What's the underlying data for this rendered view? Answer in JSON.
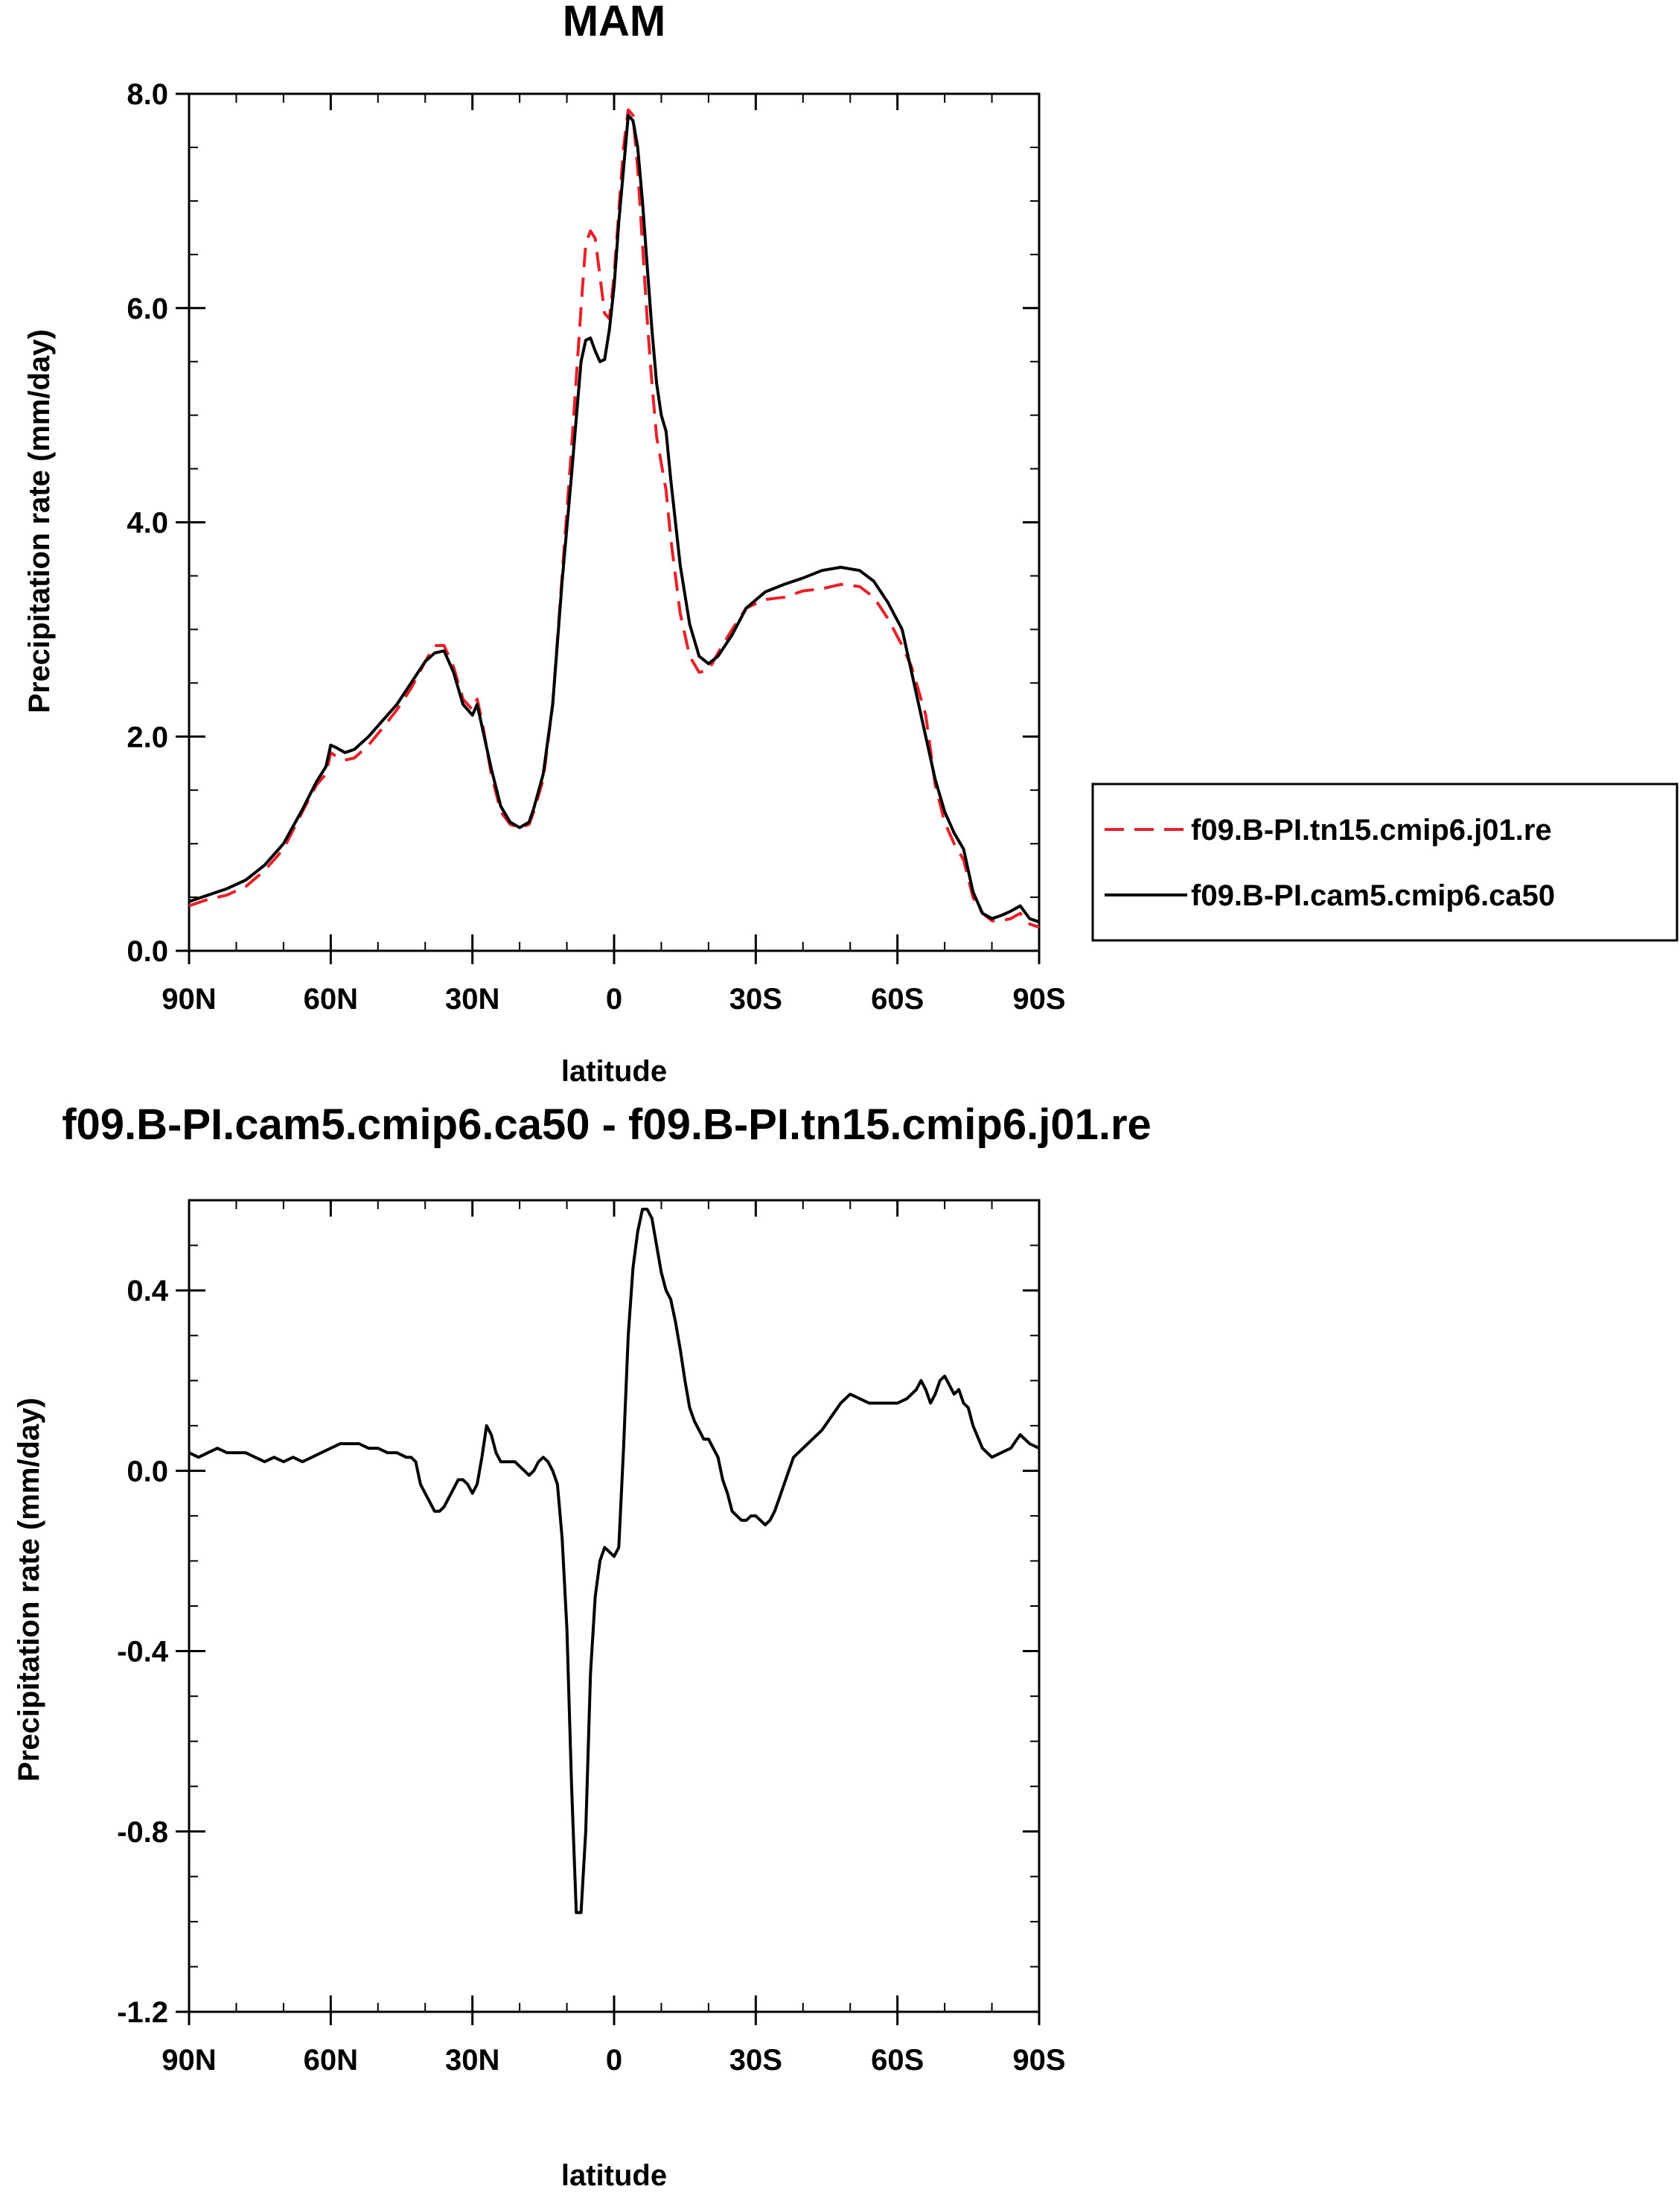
{
  "chart_data": [
    {
      "type": "line",
      "title": "MAM",
      "xlabel": "latitude",
      "ylabel": "Precipitation rate (mm/day)",
      "x_reversed": true,
      "xlim": [
        90,
        -90
      ],
      "ylim": [
        0,
        8
      ],
      "xticks": [
        90,
        60,
        30,
        0,
        -30,
        -60,
        -90
      ],
      "xtick_labels": [
        "90N",
        "60N",
        "30N",
        "0",
        "30S",
        "60S",
        "90S"
      ],
      "yticks": [
        0,
        2,
        4,
        6,
        8
      ],
      "ytick_labels": [
        "0.0",
        "2.0",
        "4.0",
        "6.0",
        "8.0"
      ],
      "grid": false,
      "legend_position": "right",
      "series": [
        {
          "name": "f09.B-PI.tn15.cmip6.j01.re",
          "color": "#e8202a",
          "dash": "dashed",
          "x": [
            90,
            86,
            82,
            78,
            74,
            70,
            66,
            63,
            61,
            60,
            59,
            57,
            55,
            52,
            49,
            46,
            43,
            40,
            38,
            36,
            34,
            32,
            30,
            29,
            28,
            26,
            24,
            22,
            20,
            18,
            17,
            15,
            13,
            11,
            9,
            7,
            6,
            5,
            4,
            3,
            2,
            1,
            0,
            -1,
            -2,
            -3,
            -4,
            -5,
            -6,
            -7,
            -8,
            -9,
            -10,
            -11,
            -12,
            -14,
            -16,
            -18,
            -20,
            -22,
            -25,
            -28,
            -32,
            -36,
            -40,
            -44,
            -48,
            -52,
            -55,
            -58,
            -61,
            -63,
            -66,
            -68,
            -70,
            -72,
            -74,
            -76,
            -78,
            -80,
            -82,
            -84,
            -86,
            -88,
            -90
          ],
          "y": [
            0.42,
            0.48,
            0.52,
            0.6,
            0.75,
            0.95,
            1.3,
            1.55,
            1.65,
            1.85,
            1.82,
            1.78,
            1.8,
            1.92,
            2.08,
            2.25,
            2.45,
            2.7,
            2.85,
            2.85,
            2.65,
            2.35,
            2.25,
            2.35,
            2.15,
            1.65,
            1.3,
            1.18,
            1.15,
            1.18,
            1.3,
            1.6,
            2.3,
            3.5,
            4.7,
            6.0,
            6.6,
            6.72,
            6.65,
            6.3,
            5.95,
            5.9,
            6.3,
            6.9,
            7.5,
            7.85,
            7.8,
            7.3,
            6.6,
            5.9,
            5.3,
            4.8,
            4.55,
            4.3,
            3.85,
            3.15,
            2.75,
            2.6,
            2.62,
            2.78,
            3.0,
            3.2,
            3.28,
            3.3,
            3.36,
            3.38,
            3.42,
            3.4,
            3.3,
            3.1,
            2.85,
            2.65,
            2.2,
            1.55,
            1.2,
            1.0,
            0.85,
            0.5,
            0.35,
            0.28,
            0.28,
            0.3,
            0.35,
            0.25,
            0.22
          ]
        },
        {
          "name": "f09.B-PI.cam5.cmip6.ca50",
          "color": "#000000",
          "dash": "solid",
          "x": [
            90,
            86,
            82,
            78,
            74,
            70,
            66,
            63,
            61,
            60,
            59,
            57,
            55,
            52,
            49,
            46,
            43,
            40,
            38,
            36,
            34,
            32,
            30,
            29,
            28,
            26,
            24,
            22,
            20,
            18,
            17,
            15,
            13,
            11,
            9,
            7,
            6,
            5,
            4,
            3,
            2,
            1,
            0,
            -1,
            -2,
            -3,
            -4,
            -5,
            -6,
            -7,
            -8,
            -9,
            -10,
            -11,
            -12,
            -14,
            -16,
            -18,
            -20,
            -22,
            -25,
            -28,
            -32,
            -36,
            -40,
            -44,
            -48,
            -52,
            -55,
            -58,
            -61,
            -63,
            -66,
            -68,
            -70,
            -72,
            -74,
            -76,
            -78,
            -80,
            -82,
            -84,
            -86,
            -88,
            -90
          ],
          "y": [
            0.46,
            0.52,
            0.58,
            0.66,
            0.8,
            1.0,
            1.32,
            1.58,
            1.72,
            1.92,
            1.9,
            1.85,
            1.88,
            2.0,
            2.15,
            2.3,
            2.5,
            2.7,
            2.78,
            2.8,
            2.6,
            2.3,
            2.2,
            2.3,
            2.1,
            1.7,
            1.35,
            1.2,
            1.15,
            1.2,
            1.33,
            1.65,
            2.3,
            3.45,
            4.45,
            5.5,
            5.7,
            5.72,
            5.6,
            5.5,
            5.52,
            5.8,
            6.2,
            6.8,
            7.3,
            7.8,
            7.75,
            7.5,
            7.0,
            6.4,
            5.8,
            5.3,
            5.0,
            4.85,
            4.4,
            3.6,
            3.05,
            2.75,
            2.68,
            2.75,
            2.95,
            3.2,
            3.35,
            3.42,
            3.48,
            3.55,
            3.58,
            3.55,
            3.45,
            3.25,
            3.0,
            2.6,
            2.0,
            1.6,
            1.3,
            1.1,
            0.95,
            0.55,
            0.35,
            0.3,
            0.33,
            0.37,
            0.42,
            0.3,
            0.27
          ]
        }
      ]
    },
    {
      "type": "line",
      "title": "f09.B-PI.cam5.cmip6.ca50 - f09.B-PI.tn15.cmip6.j01.re",
      "xlabel": "latitude",
      "ylabel": "Precipitation rate (mm/day)",
      "x_reversed": true,
      "xlim": [
        90,
        -90
      ],
      "ylim": [
        -1.2,
        0.6
      ],
      "xticks": [
        90,
        60,
        30,
        0,
        -30,
        -60,
        -90
      ],
      "xtick_labels": [
        "90N",
        "60N",
        "30N",
        "0",
        "30S",
        "60S",
        "90S"
      ],
      "yticks": [
        -1.2,
        -0.8,
        -0.4,
        0.0,
        0.4
      ],
      "ytick_labels": [
        "-1.2",
        "-0.8",
        "-0.4",
        "0.0",
        "0.4"
      ],
      "grid": false,
      "series": [
        {
          "color": "#000000",
          "dash": "solid",
          "x": [
            90,
            88,
            86,
            84,
            82,
            80,
            78,
            76,
            74,
            72,
            70,
            68,
            66,
            64,
            62,
            60,
            58,
            56,
            54,
            52,
            50,
            48,
            46,
            44,
            43,
            42,
            41,
            40,
            39,
            38,
            37,
            36,
            35,
            34,
            33,
            32,
            31,
            30,
            29,
            28,
            27,
            26,
            25,
            24,
            23,
            22,
            21,
            20,
            19,
            18,
            17,
            16,
            15,
            14,
            13,
            12,
            11,
            10,
            9,
            8,
            7,
            6,
            5,
            4,
            3,
            2,
            1,
            0,
            -1,
            -2,
            -3,
            -4,
            -5,
            -6,
            -7,
            -8,
            -9,
            -10,
            -11,
            -12,
            -13,
            -14,
            -15,
            -16,
            -17,
            -18,
            -19,
            -20,
            -21,
            -22,
            -23,
            -24,
            -25,
            -26,
            -27,
            -28,
            -29,
            -30,
            -31,
            -32,
            -33,
            -34,
            -35,
            -36,
            -37,
            -38,
            -40,
            -42,
            -44,
            -46,
            -48,
            -50,
            -52,
            -54,
            -56,
            -58,
            -60,
            -62,
            -64,
            -65,
            -66,
            -67,
            -68,
            -69,
            -70,
            -71,
            -72,
            -73,
            -74,
            -75,
            -76,
            -78,
            -80,
            -82,
            -84,
            -86,
            -88,
            -90
          ],
          "y": [
            0.04,
            0.03,
            0.04,
            0.05,
            0.04,
            0.04,
            0.04,
            0.03,
            0.02,
            0.03,
            0.02,
            0.03,
            0.02,
            0.03,
            0.04,
            0.05,
            0.06,
            0.06,
            0.06,
            0.05,
            0.05,
            0.04,
            0.04,
            0.03,
            0.03,
            0.02,
            -0.03,
            -0.05,
            -0.07,
            -0.09,
            -0.09,
            -0.08,
            -0.06,
            -0.04,
            -0.02,
            -0.02,
            -0.03,
            -0.05,
            -0.03,
            0.03,
            0.1,
            0.08,
            0.04,
            0.02,
            0.02,
            0.02,
            0.02,
            0.01,
            0.0,
            -0.01,
            0.0,
            0.02,
            0.03,
            0.02,
            0.0,
            -0.03,
            -0.15,
            -0.35,
            -0.7,
            -0.98,
            -0.98,
            -0.8,
            -0.45,
            -0.28,
            -0.2,
            -0.17,
            -0.18,
            -0.19,
            -0.17,
            0.05,
            0.3,
            0.45,
            0.53,
            0.58,
            0.58,
            0.56,
            0.5,
            0.44,
            0.4,
            0.38,
            0.33,
            0.27,
            0.2,
            0.14,
            0.11,
            0.09,
            0.07,
            0.07,
            0.05,
            0.03,
            -0.02,
            -0.05,
            -0.09,
            -0.1,
            -0.11,
            -0.11,
            -0.1,
            -0.1,
            -0.11,
            -0.12,
            -0.11,
            -0.09,
            -0.06,
            -0.03,
            0.0,
            0.03,
            0.05,
            0.07,
            0.09,
            0.12,
            0.15,
            0.17,
            0.16,
            0.15,
            0.15,
            0.15,
            0.15,
            0.16,
            0.18,
            0.2,
            0.18,
            0.15,
            0.17,
            0.2,
            0.21,
            0.19,
            0.17,
            0.18,
            0.15,
            0.14,
            0.1,
            0.05,
            0.03,
            0.04,
            0.05,
            0.08,
            0.06,
            0.05
          ]
        }
      ]
    }
  ]
}
